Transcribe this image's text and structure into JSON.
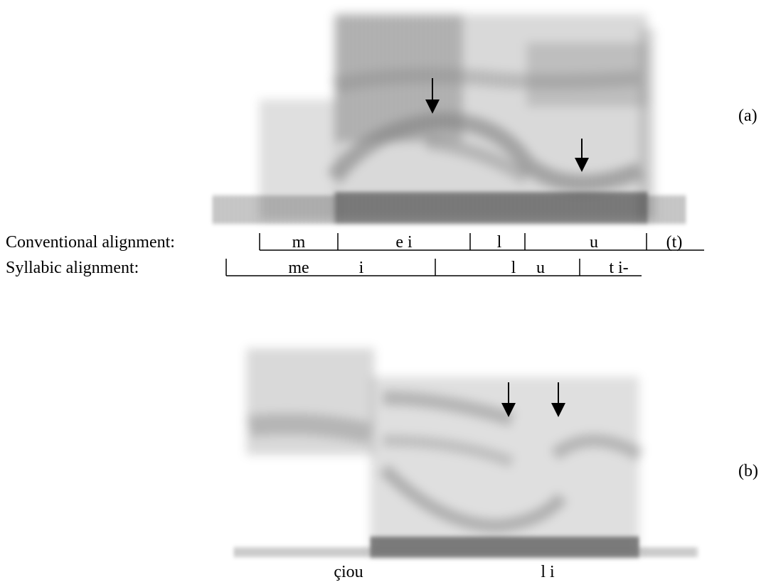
{
  "panels": [
    {
      "label": "(a)",
      "alignments": [
        {
          "title": "Conventional alignment:",
          "segments": [
            "m",
            "e i",
            "l",
            "u",
            "(t)"
          ]
        },
        {
          "title": "Syllabic alignment:",
          "segments": [
            "me",
            "i",
            "l",
            "u",
            "t i-"
          ]
        }
      ]
    },
    {
      "label": "(b)",
      "words": [
        "çiou",
        "l i"
      ]
    }
  ]
}
